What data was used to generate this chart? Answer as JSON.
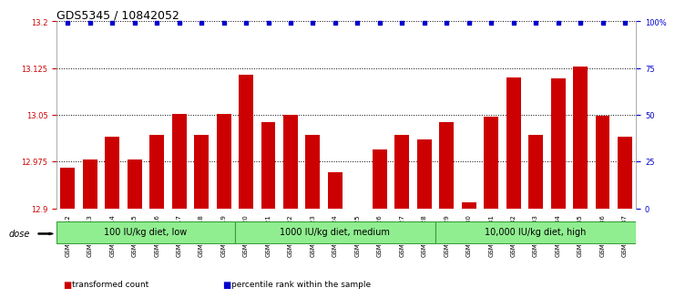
{
  "title": "GDS5345 / 10842052",
  "samples": [
    "GSM1502412",
    "GSM1502413",
    "GSM1502414",
    "GSM1502415",
    "GSM1502416",
    "GSM1502417",
    "GSM1502418",
    "GSM1502419",
    "GSM1502420",
    "GSM1502421",
    "GSM1502422",
    "GSM1502423",
    "GSM1502424",
    "GSM1502425",
    "GSM1502426",
    "GSM1502427",
    "GSM1502428",
    "GSM1502429",
    "GSM1502430",
    "GSM1502431",
    "GSM1502432",
    "GSM1502433",
    "GSM1502434",
    "GSM1502435",
    "GSM1502436",
    "GSM1502437"
  ],
  "values": [
    12.965,
    12.978,
    13.015,
    12.978,
    13.018,
    13.052,
    13.018,
    13.052,
    13.115,
    13.038,
    13.05,
    13.018,
    12.958,
    12.9,
    12.995,
    13.018,
    13.01,
    13.038,
    12.91,
    13.047,
    13.11,
    13.018,
    13.108,
    13.128,
    13.048,
    13.015
  ],
  "percentile_value": 13.197,
  "bar_color": "#cc0000",
  "percentile_color": "#0000cc",
  "ylim_min": 12.9,
  "ylim_max": 13.2,
  "yticks_left": [
    12.9,
    12.975,
    13.05,
    13.125,
    13.2
  ],
  "yticks_right": [
    0,
    25,
    50,
    75,
    100
  ],
  "ytick_labels_right": [
    "0",
    "25",
    "50",
    "75",
    "100%"
  ],
  "groups": [
    {
      "label": "100 IU/kg diet, low",
      "start": 0,
      "end": 8
    },
    {
      "label": "1000 IU/kg diet, medium",
      "start": 8,
      "end": 17
    },
    {
      "label": "10,000 IU/kg diet, high",
      "start": 17,
      "end": 26
    }
  ],
  "dose_label": "dose",
  "legend_items": [
    {
      "label": "transformed count",
      "color": "#cc0000",
      "marker": "s"
    },
    {
      "label": "percentile rank within the sample",
      "color": "#0000cc",
      "marker": "s"
    }
  ],
  "background_color": "#ffffff",
  "plot_bg_color": "#ffffff",
  "grid_color": "#000000",
  "title_fontsize": 9,
  "tick_fontsize": 6,
  "bar_width": 0.65,
  "group_facecolor": "#90ee90",
  "group_edgecolor": "#3a9e3a"
}
